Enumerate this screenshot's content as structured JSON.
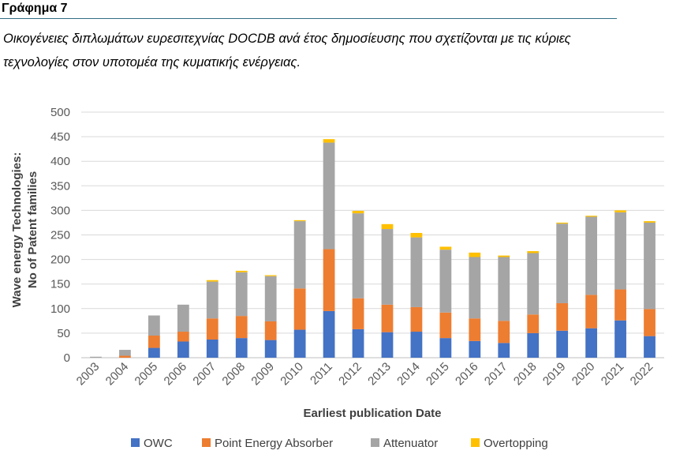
{
  "figure": {
    "label": "Γράφημα 7",
    "caption_line1": "Οικογένειες διπλωμάτων ευρεσιτεχνίας DOCDB ανά έτος δημοσίευσης που σχετίζονται με τις κύριες",
    "caption_line2": "τεχνολογίες στον υποτομέα της κυματικής ενέργειας."
  },
  "chart_data": {
    "type": "bar",
    "stacked": true,
    "categories": [
      "2003",
      "2004",
      "2005",
      "2006",
      "2007",
      "2008",
      "2009",
      "2010",
      "2011",
      "2012",
      "2013",
      "2014",
      "2015",
      "2016",
      "2017",
      "2018",
      "2019",
      "2020",
      "2021",
      "2022"
    ],
    "series": [
      {
        "name": "OWC",
        "color": "#4472C4",
        "values": [
          0,
          0,
          20,
          33,
          37,
          40,
          36,
          57,
          95,
          58,
          52,
          53,
          40,
          34,
          30,
          50,
          55,
          60,
          76,
          44
        ]
      },
      {
        "name": "Point Energy Absorber",
        "color": "#ED7D31",
        "values": [
          0,
          4,
          25,
          20,
          43,
          45,
          38,
          84,
          126,
          63,
          56,
          50,
          52,
          46,
          45,
          38,
          56,
          68,
          63,
          55
        ]
      },
      {
        "name": "Attenuator",
        "color": "#A5A5A5",
        "values": [
          2,
          12,
          41,
          55,
          75,
          89,
          92,
          137,
          217,
          173,
          154,
          142,
          128,
          125,
          130,
          125,
          162,
          159,
          157,
          176
        ]
      },
      {
        "name": "Overtopping",
        "color": "#FFC000",
        "values": [
          0,
          0,
          0,
          0,
          3,
          3,
          2,
          2,
          7,
          5,
          10,
          9,
          6,
          9,
          3,
          4,
          2,
          2,
          4,
          3
        ]
      }
    ],
    "xlabel": "Earliest publication Date",
    "ylabel_line1": "Wave energy Technologies:",
    "ylabel_line2": "No of Patent families",
    "ylim": [
      0,
      500
    ],
    "yticks": [
      0,
      50,
      100,
      150,
      200,
      250,
      300,
      350,
      400,
      450,
      500
    ],
    "grid": true,
    "legend_position": "bottom"
  }
}
